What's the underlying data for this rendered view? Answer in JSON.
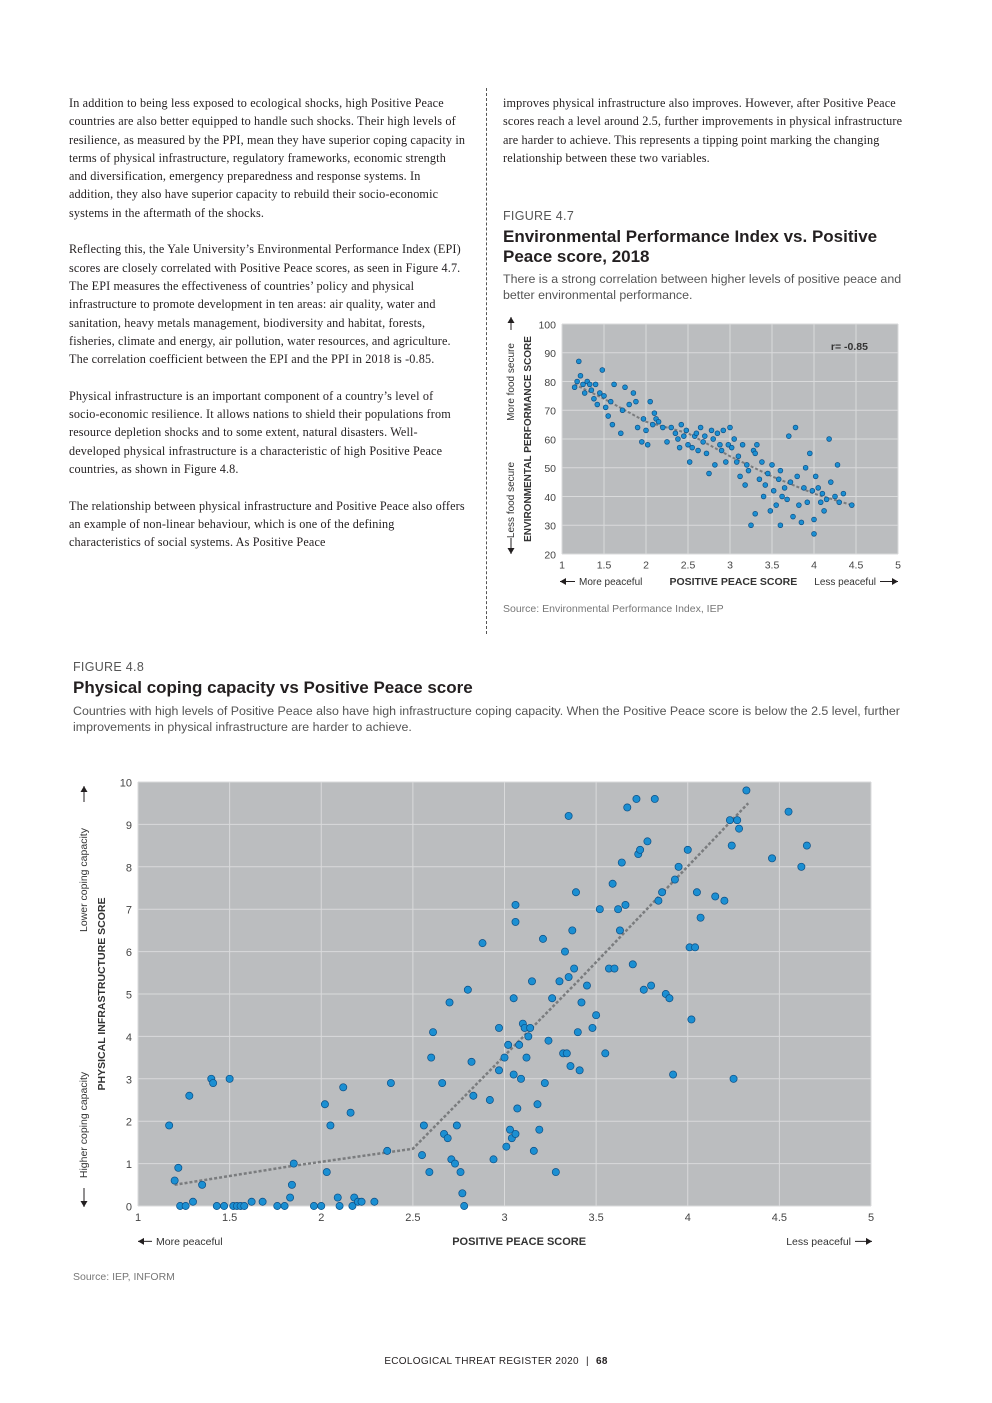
{
  "left_column": {
    "paragraphs": [
      "In addition to being less exposed to ecological shocks, high Positive Peace countries are also better equipped to handle such shocks. Their high levels of resilience, as measured by the PPI, mean they have superior coping capacity in terms of physical infrastructure, regulatory frameworks, economic strength and diversification, emergency preparedness and response systems. In addition, they also have superior capacity to rebuild their socio-economic systems in the aftermath of the shocks.",
      "Reflecting this, the Yale University’s Environmental Performance Index (EPI) scores are closely correlated with Positive Peace scores, as seen in Figure 4.7. The EPI measures the effectiveness of countries’ policy and physical infrastructure to promote development in ten areas: air quality, water and sanitation, heavy metals management, biodiversity and habitat, forests, fisheries, climate and energy, air pollution, water resources, and agriculture. The correlation coefficient between the EPI and the PPI in 2018 is -0.85.",
      "Physical infrastructure is an important component of a country’s level of socio-economic resilience. It allows nations to shield their populations from resource depletion shocks and to some extent, natural disasters. Well-developed physical infrastructure is a characteristic of high Positive Peace countries, as shown in Figure 4.8.",
      "The relationship between physical infrastructure and Positive Peace also offers an example of non-linear behaviour, which is one of the defining characteristics of social systems. As Positive Peace"
    ]
  },
  "right_column": {
    "paragraph": "improves physical infrastructure also improves. However, after Positive Peace scores reach a level around 2.5, further improvements in physical infrastructure are harder to achieve. This represents a tipping point marking the changing relationship between these two variables."
  },
  "figure_4_7": {
    "label": "FIGURE 4.7",
    "title": "Environmental Performance Index vs. Positive Peace score, 2018",
    "subtitle": "There is a strong correlation between higher levels of positive peace and better environmental performance.",
    "source": "Source: Environmental Performance Index, IEP"
  },
  "figure_4_8": {
    "label": "FIGURE 4.8",
    "title": "Physical coping capacity vs Positive Peace score",
    "subtitle": "Countries with high levels of Positive Peace also have high infrastructure coping capacity. When the Positive Peace score is below the 2.5 level, further improvements in physical infrastructure are harder to achieve.",
    "source": "Source: IEP, INFORM"
  },
  "footer": {
    "report": "ECOLOGICAL THREAT REGISTER 2020",
    "separator": "|",
    "page": "68"
  },
  "colors": {
    "plot_bg": "#bbbdbf",
    "grid": "#d9dadb",
    "point_fill": "#1b8fd2",
    "point_stroke": "#0c4f86",
    "trend": "#7a7c7e"
  },
  "chart_data": [
    {
      "type": "scatter",
      "title": "Environmental Performance Index vs. Positive Peace score, 2018",
      "xlabel": "POSITIVE PEACE SCORE",
      "ylabel": "ENVIRONMENTAL PERFORMANCE SCORE",
      "x_left_note": "More peaceful",
      "x_right_note": "Less peaceful",
      "y_top_note": "More food secure",
      "y_bottom_note": "Less food secure",
      "annotation": "r= -0.85",
      "xlim": [
        1,
        5
      ],
      "ylim": [
        20,
        100
      ],
      "x_ticks": [
        "1",
        "1.5",
        "2",
        "2.5",
        "3",
        "3.5",
        "4",
        "4.5",
        "5"
      ],
      "y_ticks": [
        "20",
        "30",
        "40",
        "50",
        "60",
        "70",
        "80",
        "90",
        "100"
      ],
      "grid": true,
      "trend_line": [
        [
          1.15,
          79
        ],
        [
          1.5,
          74
        ],
        [
          2.0,
          66
        ],
        [
          2.5,
          62
        ],
        [
          3.0,
          54
        ],
        [
          3.5,
          47
        ],
        [
          4.0,
          41
        ],
        [
          4.45,
          37
        ]
      ],
      "points": [
        [
          1.15,
          78
        ],
        [
          1.18,
          80
        ],
        [
          1.2,
          87
        ],
        [
          1.22,
          82
        ],
        [
          1.25,
          79
        ],
        [
          1.27,
          76
        ],
        [
          1.3,
          80
        ],
        [
          1.33,
          79
        ],
        [
          1.35,
          77
        ],
        [
          1.38,
          74
        ],
        [
          1.4,
          79
        ],
        [
          1.42,
          72
        ],
        [
          1.45,
          76
        ],
        [
          1.48,
          84
        ],
        [
          1.5,
          75
        ],
        [
          1.52,
          71
        ],
        [
          1.55,
          68
        ],
        [
          1.58,
          73
        ],
        [
          1.6,
          65
        ],
        [
          1.62,
          79
        ],
        [
          1.7,
          62
        ],
        [
          1.72,
          70
        ],
        [
          1.75,
          78
        ],
        [
          1.8,
          72
        ],
        [
          1.85,
          76
        ],
        [
          1.88,
          73
        ],
        [
          1.9,
          64
        ],
        [
          1.95,
          59
        ],
        [
          1.97,
          67
        ],
        [
          2.0,
          63
        ],
        [
          2.02,
          58
        ],
        [
          2.05,
          73
        ],
        [
          2.08,
          65
        ],
        [
          2.1,
          69
        ],
        [
          2.12,
          67
        ],
        [
          2.15,
          66
        ],
        [
          2.2,
          64
        ],
        [
          2.25,
          59
        ],
        [
          2.3,
          64
        ],
        [
          2.35,
          62
        ],
        [
          2.38,
          60
        ],
        [
          2.4,
          57
        ],
        [
          2.42,
          65
        ],
        [
          2.45,
          61
        ],
        [
          2.48,
          63
        ],
        [
          2.5,
          58
        ],
        [
          2.52,
          52
        ],
        [
          2.55,
          57
        ],
        [
          2.58,
          61
        ],
        [
          2.6,
          62
        ],
        [
          2.62,
          56
        ],
        [
          2.65,
          64
        ],
        [
          2.68,
          59
        ],
        [
          2.7,
          61
        ],
        [
          2.72,
          55
        ],
        [
          2.75,
          48
        ],
        [
          2.78,
          63
        ],
        [
          2.8,
          60
        ],
        [
          2.82,
          51
        ],
        [
          2.85,
          62
        ],
        [
          2.88,
          58
        ],
        [
          2.9,
          56
        ],
        [
          2.92,
          63
        ],
        [
          2.95,
          52
        ],
        [
          2.98,
          58
        ],
        [
          3.0,
          64
        ],
        [
          3.02,
          57
        ],
        [
          3.05,
          60
        ],
        [
          3.08,
          52
        ],
        [
          3.1,
          54
        ],
        [
          3.12,
          47
        ],
        [
          3.15,
          58
        ],
        [
          3.18,
          44
        ],
        [
          3.2,
          51
        ],
        [
          3.22,
          49
        ],
        [
          3.25,
          30
        ],
        [
          3.28,
          56
        ],
        [
          3.3,
          55
        ],
        [
          3.32,
          58
        ],
        [
          3.35,
          46
        ],
        [
          3.38,
          52
        ],
        [
          3.4,
          40
        ],
        [
          3.42,
          44
        ],
        [
          3.45,
          48
        ],
        [
          3.48,
          35
        ],
        [
          3.5,
          51
        ],
        [
          3.52,
          42
        ],
        [
          3.55,
          37
        ],
        [
          3.58,
          46
        ],
        [
          3.6,
          49
        ],
        [
          3.62,
          40
        ],
        [
          3.65,
          43
        ],
        [
          3.68,
          39
        ],
        [
          3.7,
          61
        ],
        [
          3.72,
          45
        ],
        [
          3.75,
          33
        ],
        [
          3.78,
          64
        ],
        [
          3.8,
          47
        ],
        [
          3.82,
          37
        ],
        [
          3.85,
          31
        ],
        [
          3.88,
          43
        ],
        [
          3.9,
          50
        ],
        [
          3.92,
          38
        ],
        [
          3.95,
          55
        ],
        [
          3.98,
          42
        ],
        [
          4.0,
          32
        ],
        [
          4.02,
          47
        ],
        [
          4.05,
          43
        ],
        [
          4.08,
          38
        ],
        [
          4.1,
          41
        ],
        [
          4.12,
          35
        ],
        [
          4.15,
          39
        ],
        [
          4.18,
          60
        ],
        [
          4.2,
          45
        ],
        [
          4.25,
          40
        ],
        [
          4.28,
          51
        ],
        [
          4.3,
          38
        ],
        [
          4.35,
          41
        ],
        [
          4.45,
          37
        ],
        [
          4.0,
          27
        ],
        [
          3.3,
          34
        ],
        [
          3.6,
          30
        ]
      ]
    },
    {
      "type": "scatter",
      "title": "Physical coping capacity vs Positive Peace score",
      "xlabel": "POSITIVE PEACE SCORE",
      "ylabel": "PHYSICAL INFRASTRUCTURE SCORE",
      "x_left_note": "More peaceful",
      "x_right_note": "Less peaceful",
      "y_top_note": "Lower coping capacity",
      "y_bottom_note": "Higher coping capacity",
      "xlim": [
        1,
        5
      ],
      "ylim": [
        0,
        10
      ],
      "x_ticks": [
        "1",
        "1.5",
        "2",
        "2.5",
        "3",
        "3.5",
        "4",
        "4.5",
        "5"
      ],
      "y_ticks": [
        "0",
        "1",
        "2",
        "3",
        "4",
        "5",
        "6",
        "7",
        "8",
        "9",
        "10"
      ],
      "grid": true,
      "trend_line": [
        [
          1.2,
          0.5
        ],
        [
          1.85,
          0.95
        ],
        [
          2.5,
          1.35
        ],
        [
          3.4,
          5.3
        ],
        [
          4.33,
          9.5
        ]
      ],
      "points": [
        [
          1.17,
          1.9
        ],
        [
          1.2,
          0.6
        ],
        [
          1.22,
          0.9
        ],
        [
          1.23,
          0.0
        ],
        [
          1.26,
          0.0
        ],
        [
          1.28,
          2.6
        ],
        [
          1.3,
          0.1
        ],
        [
          1.35,
          0.5
        ],
        [
          1.4,
          3.0
        ],
        [
          1.41,
          2.9
        ],
        [
          1.43,
          0.0
        ],
        [
          1.47,
          0.0
        ],
        [
          1.5,
          3.0
        ],
        [
          1.52,
          0.0
        ],
        [
          1.54,
          0.0
        ],
        [
          1.56,
          0.0
        ],
        [
          1.58,
          0.0
        ],
        [
          1.62,
          0.1
        ],
        [
          1.68,
          0.1
        ],
        [
          1.76,
          0.0
        ],
        [
          1.8,
          0.0
        ],
        [
          1.83,
          0.2
        ],
        [
          1.84,
          0.5
        ],
        [
          1.85,
          1.0
        ],
        [
          1.96,
          0.0
        ],
        [
          2.0,
          0.0
        ],
        [
          2.02,
          2.4
        ],
        [
          2.03,
          0.8
        ],
        [
          2.05,
          1.9
        ],
        [
          2.09,
          0.2
        ],
        [
          2.1,
          0.0
        ],
        [
          2.12,
          2.8
        ],
        [
          2.16,
          2.2
        ],
        [
          2.17,
          0.0
        ],
        [
          2.18,
          0.2
        ],
        [
          2.2,
          0.1
        ],
        [
          2.22,
          0.1
        ],
        [
          2.29,
          0.1
        ],
        [
          2.36,
          1.3
        ],
        [
          2.38,
          2.9
        ],
        [
          2.55,
          1.2
        ],
        [
          2.56,
          1.9
        ],
        [
          2.59,
          0.8
        ],
        [
          2.6,
          3.5
        ],
        [
          2.61,
          4.1
        ],
        [
          2.66,
          2.9
        ],
        [
          2.67,
          1.7
        ],
        [
          2.69,
          1.6
        ],
        [
          2.7,
          4.8
        ],
        [
          2.71,
          1.1
        ],
        [
          2.73,
          1.0
        ],
        [
          2.74,
          1.9
        ],
        [
          2.76,
          0.8
        ],
        [
          2.77,
          0.3
        ],
        [
          2.78,
          0.0
        ],
        [
          2.8,
          5.1
        ],
        [
          2.82,
          3.4
        ],
        [
          2.83,
          2.6
        ],
        [
          2.88,
          6.2
        ],
        [
          2.92,
          2.5
        ],
        [
          2.94,
          1.1
        ],
        [
          2.97,
          4.2
        ],
        [
          3.0,
          3.5
        ],
        [
          3.01,
          1.4
        ],
        [
          3.02,
          3.8
        ],
        [
          3.03,
          1.8
        ],
        [
          3.04,
          1.6
        ],
        [
          3.05,
          4.9
        ],
        [
          3.06,
          7.1
        ],
        [
          3.06,
          6.7
        ],
        [
          3.07,
          2.3
        ],
        [
          3.08,
          3.8
        ],
        [
          3.09,
          3.0
        ],
        [
          3.1,
          4.3
        ],
        [
          3.11,
          4.2
        ],
        [
          3.12,
          3.5
        ],
        [
          3.13,
          4.0
        ],
        [
          3.14,
          4.2
        ],
        [
          3.15,
          5.3
        ],
        [
          3.16,
          1.3
        ],
        [
          3.18,
          2.4
        ],
        [
          3.19,
          1.8
        ],
        [
          3.21,
          6.3
        ],
        [
          3.22,
          2.9
        ],
        [
          3.24,
          3.9
        ],
        [
          3.26,
          4.9
        ],
        [
          3.28,
          0.8
        ],
        [
          3.3,
          5.3
        ],
        [
          3.32,
          3.6
        ],
        [
          3.33,
          6.0
        ],
        [
          3.34,
          3.6
        ],
        [
          3.35,
          9.2
        ],
        [
          3.36,
          3.3
        ],
        [
          3.37,
          6.5
        ],
        [
          3.38,
          5.6
        ],
        [
          3.39,
          7.4
        ],
        [
          3.4,
          4.1
        ],
        [
          3.41,
          3.2
        ],
        [
          3.42,
          4.8
        ],
        [
          3.45,
          5.2
        ],
        [
          3.48,
          4.2
        ],
        [
          3.5,
          4.5
        ],
        [
          3.52,
          7.0
        ],
        [
          3.55,
          3.6
        ],
        [
          3.57,
          5.6
        ],
        [
          3.59,
          7.6
        ],
        [
          3.6,
          5.6
        ],
        [
          3.62,
          7.0
        ],
        [
          3.63,
          6.5
        ],
        [
          3.64,
          8.1
        ],
        [
          3.66,
          7.1
        ],
        [
          3.67,
          9.4
        ],
        [
          3.7,
          5.7
        ],
        [
          3.72,
          9.6
        ],
        [
          3.73,
          8.3
        ],
        [
          3.74,
          8.4
        ],
        [
          3.76,
          5.1
        ],
        [
          3.78,
          8.6
        ],
        [
          3.8,
          5.2
        ],
        [
          3.82,
          9.6
        ],
        [
          3.84,
          7.2
        ],
        [
          3.86,
          7.4
        ],
        [
          3.88,
          5.0
        ],
        [
          3.9,
          4.9
        ],
        [
          3.92,
          3.1
        ],
        [
          3.93,
          7.7
        ],
        [
          3.95,
          8.0
        ],
        [
          4.0,
          8.4
        ],
        [
          4.01,
          6.1
        ],
        [
          4.02,
          4.4
        ],
        [
          4.04,
          6.1
        ],
        [
          4.05,
          7.4
        ],
        [
          4.07,
          6.8
        ],
        [
          4.15,
          7.3
        ],
        [
          4.2,
          7.2
        ],
        [
          4.23,
          9.1
        ],
        [
          4.24,
          8.5
        ],
        [
          4.25,
          3.0
        ],
        [
          4.27,
          9.1
        ],
        [
          4.28,
          8.9
        ],
        [
          4.32,
          9.8
        ],
        [
          4.46,
          8.2
        ],
        [
          4.55,
          9.3
        ],
        [
          4.62,
          8.0
        ],
        [
          4.65,
          8.5
        ],
        [
          3.06,
          1.7
        ],
        [
          2.97,
          3.2
        ],
        [
          3.05,
          3.1
        ],
        [
          3.35,
          5.4
        ]
      ]
    }
  ]
}
